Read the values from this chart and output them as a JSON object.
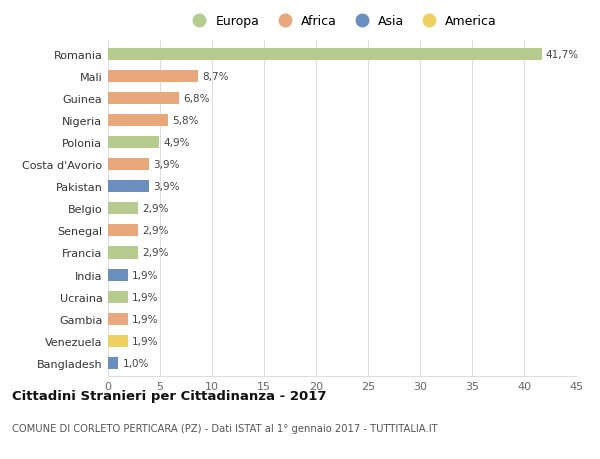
{
  "countries": [
    "Romania",
    "Mali",
    "Guinea",
    "Nigeria",
    "Polonia",
    "Costa d'Avorio",
    "Pakistan",
    "Belgio",
    "Senegal",
    "Francia",
    "India",
    "Ucraina",
    "Gambia",
    "Venezuela",
    "Bangladesh"
  ],
  "values": [
    41.7,
    8.7,
    6.8,
    5.8,
    4.9,
    3.9,
    3.9,
    2.9,
    2.9,
    2.9,
    1.9,
    1.9,
    1.9,
    1.9,
    1.0
  ],
  "labels": [
    "41,7%",
    "8,7%",
    "6,8%",
    "5,8%",
    "4,9%",
    "3,9%",
    "3,9%",
    "2,9%",
    "2,9%",
    "2,9%",
    "1,9%",
    "1,9%",
    "1,9%",
    "1,9%",
    "1,0%"
  ],
  "continents": [
    "Europa",
    "Africa",
    "Africa",
    "Africa",
    "Europa",
    "Africa",
    "Asia",
    "Europa",
    "Africa",
    "Europa",
    "Asia",
    "Europa",
    "Africa",
    "America",
    "Asia"
  ],
  "continent_colors": {
    "Europa": "#b5cc8e",
    "Africa": "#e8a87c",
    "Asia": "#6a8fbf",
    "America": "#f0d060"
  },
  "legend_order": [
    "Europa",
    "Africa",
    "Asia",
    "America"
  ],
  "title": "Cittadini Stranieri per Cittadinanza - 2017",
  "subtitle": "COMUNE DI CORLETO PERTICARA (PZ) - Dati ISTAT al 1° gennaio 2017 - TUTTITALIA.IT",
  "xlim": [
    0,
    45
  ],
  "xticks": [
    0,
    5,
    10,
    15,
    20,
    25,
    30,
    35,
    40,
    45
  ],
  "background_color": "#ffffff",
  "grid_color": "#dddddd",
  "bar_height": 0.55
}
